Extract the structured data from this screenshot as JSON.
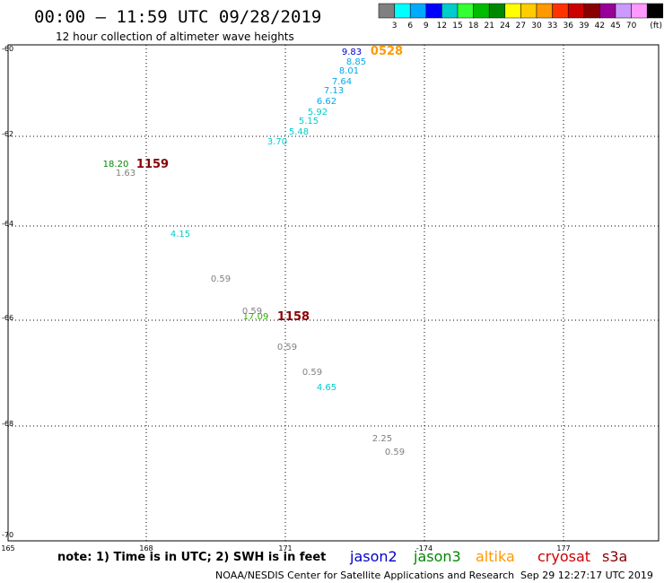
{
  "header": {
    "title": "00:00 – 11:59 UTC 09/28/2019",
    "subtitle": "12 hour collection of altimeter wave heights"
  },
  "legend": {
    "colors": [
      "#808080",
      "#00ffff",
      "#00aaff",
      "#0000ff",
      "#00cccc",
      "#33ff33",
      "#00bb00",
      "#008800",
      "#ffff00",
      "#ffcc00",
      "#ff9900",
      "#ff3300",
      "#cc0000",
      "#880000",
      "#990099",
      "#cc99ff",
      "#ff99ff",
      "#000000"
    ],
    "labels": [
      "3",
      "6",
      "9",
      "12",
      "15",
      "18",
      "21",
      "24",
      "27",
      "30",
      "33",
      "36",
      "39",
      "42",
      "45",
      "70"
    ],
    "unit": "(ft)"
  },
  "axes": {
    "lat_labels": [
      "-60",
      "-62",
      "-64",
      "-66",
      "-68",
      "-70"
    ],
    "lon_labels": [
      "165",
      "168",
      "171",
      "-174",
      "177"
    ]
  },
  "observations": [
    {
      "text": "9.83",
      "color": "#0000cc"
    },
    {
      "text": "8.85",
      "color": "#00aaee"
    },
    {
      "text": "8.01",
      "color": "#00aaee"
    },
    {
      "text": "7.64",
      "color": "#00aaee"
    },
    {
      "text": "7.13",
      "color": "#00aaee"
    },
    {
      "text": "6.62",
      "color": "#00aaee"
    },
    {
      "text": "5.92",
      "color": "#00cccc"
    },
    {
      "text": "5.15",
      "color": "#00cccc"
    },
    {
      "text": "5.48",
      "color": "#00cccc"
    },
    {
      "text": "3.70",
      "color": "#00cccc"
    },
    {
      "text": "18.20",
      "color": "#008800"
    },
    {
      "text": "1.63",
      "color": "#808080"
    },
    {
      "text": "4.15",
      "color": "#00cccc"
    },
    {
      "text": "0.59",
      "color": "#808080"
    },
    {
      "text": "0.59",
      "color": "#808080"
    },
    {
      "text": "17.09",
      "color": "#33aa00"
    },
    {
      "text": "0.59",
      "color": "#808080"
    },
    {
      "text": "0.59",
      "color": "#808080"
    },
    {
      "text": "4.65",
      "color": "#00cccc"
    },
    {
      "text": "2.25",
      "color": "#808080"
    },
    {
      "text": "0.59",
      "color": "#808080"
    }
  ],
  "time_labels": [
    {
      "text": "0528",
      "color": "#ff9900"
    },
    {
      "text": "1159",
      "color": "#880000"
    },
    {
      "text": "1158",
      "color": "#880000"
    }
  ],
  "footer": {
    "note": "note: 1) Time is in UTC; 2) SWH is in feet",
    "satellites": [
      {
        "name": "jason2",
        "color": "#0000cc"
      },
      {
        "name": "jason3",
        "color": "#008800"
      },
      {
        "name": "altika",
        "color": "#ff9900"
      },
      {
        "name": "cryosat",
        "color": "#cc0000"
      },
      {
        "name": "s3a",
        "color": "#880000"
      }
    ],
    "credit": "NOAA/NESDIS Center for Satellite Applications and Research",
    "generated": "Sep 29 12:27:17 UTC 2019"
  }
}
